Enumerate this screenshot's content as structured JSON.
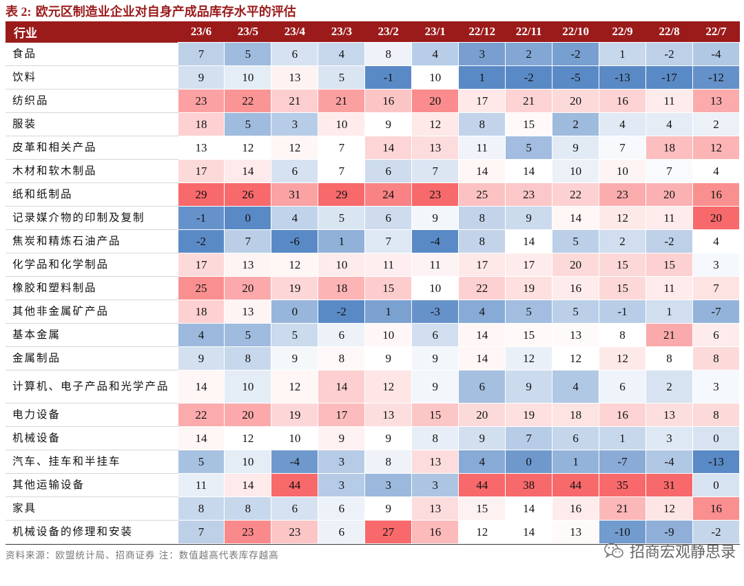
{
  "title": {
    "label": "表 2:",
    "text": "欧元区制造业企业对自身产成品库存水平的评估"
  },
  "table": {
    "header_industry": "行业",
    "columns": [
      "23/6",
      "23/5",
      "23/4",
      "23/3",
      "23/2",
      "23/1",
      "22/12",
      "22/11",
      "22/10",
      "22/9",
      "22/8",
      "22/7"
    ],
    "rows": [
      {
        "name": "食品",
        "values": [
          7,
          5,
          6,
          4,
          8,
          4,
          3,
          2,
          -2,
          1,
          -2,
          -4
        ]
      },
      {
        "name": "饮料",
        "values": [
          9,
          10,
          13,
          5,
          -1,
          10,
          1,
          -2,
          -5,
          -13,
          -17,
          -12
        ]
      },
      {
        "name": "纺织品",
        "values": [
          23,
          22,
          21,
          21,
          16,
          20,
          17,
          21,
          20,
          16,
          11,
          13
        ]
      },
      {
        "name": "服装",
        "values": [
          18,
          5,
          3,
          10,
          9,
          12,
          8,
          15,
          2,
          4,
          4,
          2
        ]
      },
      {
        "name": "皮革和相关产品",
        "values": [
          13,
          12,
          12,
          7,
          14,
          13,
          11,
          5,
          9,
          7,
          18,
          12
        ]
      },
      {
        "name": "木材和软木制品",
        "values": [
          17,
          14,
          6,
          7,
          6,
          7,
          14,
          14,
          10,
          10,
          7,
          4
        ]
      },
      {
        "name": "纸和纸制品",
        "values": [
          29,
          26,
          31,
          29,
          24,
          23,
          25,
          23,
          22,
          23,
          20,
          16
        ]
      },
      {
        "name": "记录媒介物的印制及复制",
        "values": [
          -1,
          0,
          4,
          5,
          6,
          9,
          8,
          9,
          14,
          12,
          11,
          20
        ]
      },
      {
        "name": "焦炭和精炼石油产品",
        "values": [
          -2,
          7,
          -6,
          1,
          7,
          -4,
          8,
          14,
          5,
          2,
          -2,
          4
        ]
      },
      {
        "name": "化学品和化学制品",
        "values": [
          17,
          13,
          12,
          10,
          11,
          11,
          17,
          17,
          20,
          15,
          15,
          3
        ]
      },
      {
        "name": "橡胶和塑料制品",
        "values": [
          25,
          20,
          19,
          18,
          15,
          10,
          22,
          19,
          16,
          15,
          11,
          7
        ]
      },
      {
        "name": "其他非金属矿产品",
        "values": [
          18,
          13,
          0,
          -2,
          1,
          -3,
          4,
          5,
          5,
          -1,
          1,
          -7
        ]
      },
      {
        "name": "基本金属",
        "values": [
          4,
          5,
          5,
          6,
          10,
          6,
          14,
          15,
          13,
          8,
          21,
          6
        ]
      },
      {
        "name": "金属制品",
        "values": [
          9,
          8,
          9,
          8,
          9,
          9,
          14,
          12,
          12,
          12,
          8,
          8
        ]
      },
      {
        "name": "计算机、电子产品和光学产品",
        "values": [
          14,
          10,
          12,
          14,
          12,
          9,
          6,
          9,
          4,
          6,
          2,
          3
        ]
      },
      {
        "name": "电力设备",
        "values": [
          22,
          20,
          19,
          17,
          13,
          15,
          20,
          19,
          18,
          16,
          13,
          8
        ]
      },
      {
        "name": "机械设备",
        "values": [
          14,
          12,
          10,
          9,
          9,
          8,
          9,
          7,
          6,
          1,
          3,
          0
        ]
      },
      {
        "name": "汽车、挂车和半挂车",
        "values": [
          5,
          10,
          -4,
          3,
          8,
          13,
          4,
          0,
          1,
          -7,
          -4,
          -13
        ]
      },
      {
        "name": "其他运输设备",
        "values": [
          11,
          14,
          44,
          3,
          3,
          3,
          44,
          38,
          44,
          35,
          31,
          0
        ]
      },
      {
        "name": "家具",
        "values": [
          8,
          8,
          6,
          6,
          9,
          13,
          15,
          14,
          16,
          21,
          12,
          16
        ]
      },
      {
        "name": "机械设备的修理和安装",
        "values": [
          7,
          23,
          23,
          6,
          27,
          16,
          12,
          14,
          13,
          -10,
          -9,
          -2
        ]
      }
    ]
  },
  "footer": "资料来源：欧盟统计局、招商证券  注：数值越高代表库存越高",
  "watermark": "招商宏观静思录",
  "colors": {
    "header_bg": "#9b1b1b",
    "high": "#f8696b",
    "mid": "#ffffff",
    "low": "#5a8ac6"
  }
}
